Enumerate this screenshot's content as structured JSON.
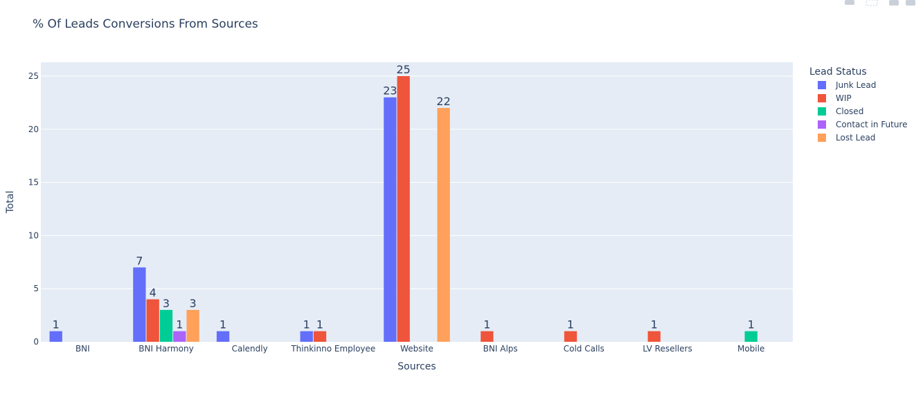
{
  "chart_data": {
    "type": "bar",
    "title": "% Of  Leads Conversions From Sources",
    "xlabel": "Sources",
    "ylabel": "Total",
    "ylim": [
      0,
      26.3
    ],
    "yticks": [
      0,
      5,
      10,
      15,
      20,
      25
    ],
    "categories": [
      "BNI",
      "BNI Harmony",
      "Calendly",
      "Thinkinno Employee",
      "Website",
      "BNI Alps",
      "Cold Calls",
      "LV Resellers",
      "Mobile"
    ],
    "legend_title": "Lead Status",
    "legend_position": "top-right",
    "grid": true,
    "series": [
      {
        "name": "Junk Lead",
        "color": "#636efa",
        "values": [
          1,
          7,
          1,
          1,
          23,
          null,
          null,
          null,
          null
        ]
      },
      {
        "name": "WIP",
        "color": "#ef553b",
        "values": [
          null,
          4,
          null,
          1,
          25,
          1,
          1,
          1,
          null
        ]
      },
      {
        "name": "Closed",
        "color": "#00cc96",
        "values": [
          null,
          3,
          null,
          null,
          null,
          null,
          null,
          null,
          1
        ]
      },
      {
        "name": "Contact in Future",
        "color": "#ab63fa",
        "values": [
          null,
          1,
          null,
          null,
          null,
          null,
          null,
          null,
          null
        ]
      },
      {
        "name": "Lost Lead",
        "color": "#ffa15a",
        "values": [
          null,
          3,
          null,
          null,
          22,
          null,
          null,
          null,
          null
        ]
      }
    ]
  },
  "style": {
    "plot_bg": "#e5ecf6",
    "grid_color": "#ffffff",
    "text_color": "#2a3f5f"
  }
}
